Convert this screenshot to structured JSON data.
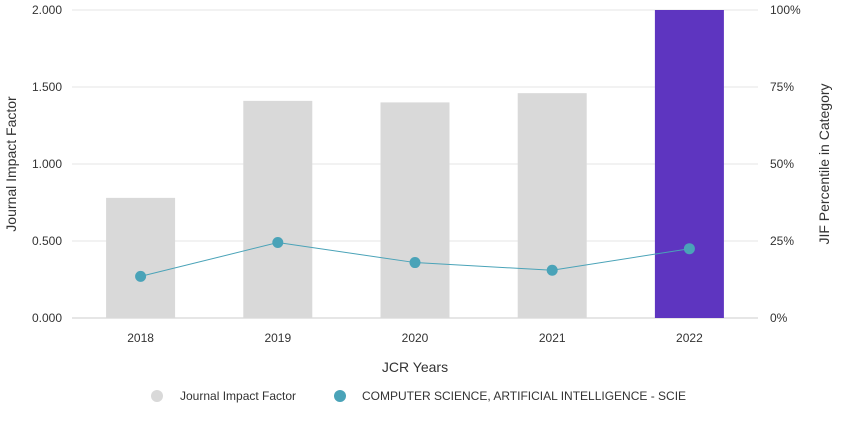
{
  "chart_data": {
    "type": "bar",
    "categories": [
      "2018",
      "2019",
      "2020",
      "2021",
      "2022"
    ],
    "series": [
      {
        "name": "Journal Impact Factor",
        "type": "bar",
        "axis": "left",
        "values": [
          0.78,
          1.41,
          1.4,
          1.46,
          2.0
        ],
        "colors": [
          "#d9d9d9",
          "#d9d9d9",
          "#d9d9d9",
          "#d9d9d9",
          "#5e35c0"
        ]
      },
      {
        "name": "COMPUTER SCIENCE, ARTIFICIAL INTELLIGENCE - SCIE",
        "type": "line",
        "axis": "right",
        "values": [
          13.5,
          24.5,
          18.0,
          15.5,
          22.5
        ],
        "color": "#4aa3b8"
      }
    ],
    "xlabel": "JCR Years",
    "ylabel": "Journal Impact Factor",
    "ylabel_right": "JIF Percentile in Category",
    "ylim": [
      0,
      2
    ],
    "ylim_right": [
      0,
      100
    ],
    "yticks": [
      "0.000",
      "0.500",
      "1.000",
      "1.500",
      "2.000"
    ],
    "yticks_right": [
      "0%",
      "25%",
      "50%",
      "75%",
      "100%"
    ],
    "grid": true,
    "legend": "bottom",
    "legend_items": [
      {
        "label": "Journal Impact Factor",
        "color": "#d9d9d9"
      },
      {
        "label": "COMPUTER SCIENCE, ARTIFICIAL INTELLIGENCE - SCIE",
        "color": "#4aa3b8"
      }
    ]
  }
}
